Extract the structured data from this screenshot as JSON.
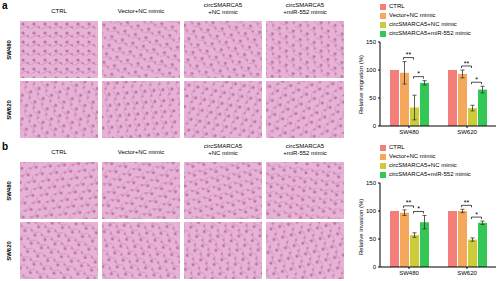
{
  "column_labels": [
    [
      "CTRL"
    ],
    [
      "Vector+NC mimic"
    ],
    [
      "circSMARCA5",
      "+NC mimic"
    ],
    [
      "circSMARCA5",
      "+miR-552 mimic"
    ]
  ],
  "row_labels": [
    "SW480",
    "SW620"
  ],
  "panel_labels": [
    "a",
    "b"
  ],
  "chart_data": [
    {
      "type": "bar",
      "y_label": "Relative migration (%)",
      "categories": [
        "SW480",
        "SW620"
      ],
      "ylim": [
        0,
        150
      ],
      "yticks": [
        0,
        50,
        100,
        150
      ],
      "legend": "top-right",
      "series": [
        {
          "name": "CTRL",
          "color": "#f47f7a",
          "values": [
            100,
            100
          ],
          "errors": [
            0,
            0
          ]
        },
        {
          "name": "Vector+NC mimic",
          "color": "#f5a75c",
          "values": [
            95,
            93
          ],
          "errors": [
            20,
            7
          ]
        },
        {
          "name": "circSMARCA5+NC mimic",
          "color": "#cccc3a",
          "values": [
            33,
            32
          ],
          "errors": [
            22,
            5
          ]
        },
        {
          "name": "circSMARCA5+miR-552 mimic",
          "color": "#35c756",
          "values": [
            77,
            65
          ],
          "errors": [
            4,
            6
          ]
        }
      ],
      "annotations": [
        {
          "category": "SW480",
          "between": [
            "Vector+NC mimic",
            "circSMARCA5+NC mimic"
          ],
          "text": "**"
        },
        {
          "category": "SW480",
          "between": [
            "circSMARCA5+NC mimic",
            "circSMARCA5+miR-552 mimic"
          ],
          "text": "*"
        },
        {
          "category": "SW620",
          "between": [
            "Vector+NC mimic",
            "circSMARCA5+NC mimic"
          ],
          "text": "**"
        },
        {
          "category": "SW620",
          "between": [
            "circSMARCA5+NC mimic",
            "circSMARCA5+miR-552 mimic"
          ],
          "text": "*"
        }
      ]
    },
    {
      "type": "bar",
      "y_label": "Relative invasion (%)",
      "categories": [
        "SW480",
        "SW620"
      ],
      "ylim": [
        0,
        150
      ],
      "yticks": [
        0,
        50,
        100,
        150
      ],
      "legend": "top-right",
      "series": [
        {
          "name": "CTRL",
          "color": "#f47f7a",
          "values": [
            100,
            100
          ],
          "errors": [
            0,
            0
          ]
        },
        {
          "name": "Vector+NC mimic",
          "color": "#f5a75c",
          "values": [
            97,
            100
          ],
          "errors": [
            5,
            3
          ]
        },
        {
          "name": "circSMARCA5+NC mimic",
          "color": "#cccc3a",
          "values": [
            57,
            49
          ],
          "errors": [
            4,
            3
          ]
        },
        {
          "name": "circSMARCA5+miR-552 mimic",
          "color": "#35c756",
          "values": [
            80,
            79
          ],
          "errors": [
            12,
            3
          ]
        }
      ],
      "annotations": [
        {
          "category": "SW480",
          "between": [
            "Vector+NC mimic",
            "circSMARCA5+NC mimic"
          ],
          "text": "**"
        },
        {
          "category": "SW480",
          "between": [
            "circSMARCA5+NC mimic",
            "circSMARCA5+miR-552 mimic"
          ],
          "text": "*"
        },
        {
          "category": "SW620",
          "between": [
            "Vector+NC mimic",
            "circSMARCA5+NC mimic"
          ],
          "text": "**"
        },
        {
          "category": "SW620",
          "between": [
            "circSMARCA5+NC mimic",
            "circSMARCA5+miR-552 mimic"
          ],
          "text": "*"
        }
      ]
    }
  ]
}
